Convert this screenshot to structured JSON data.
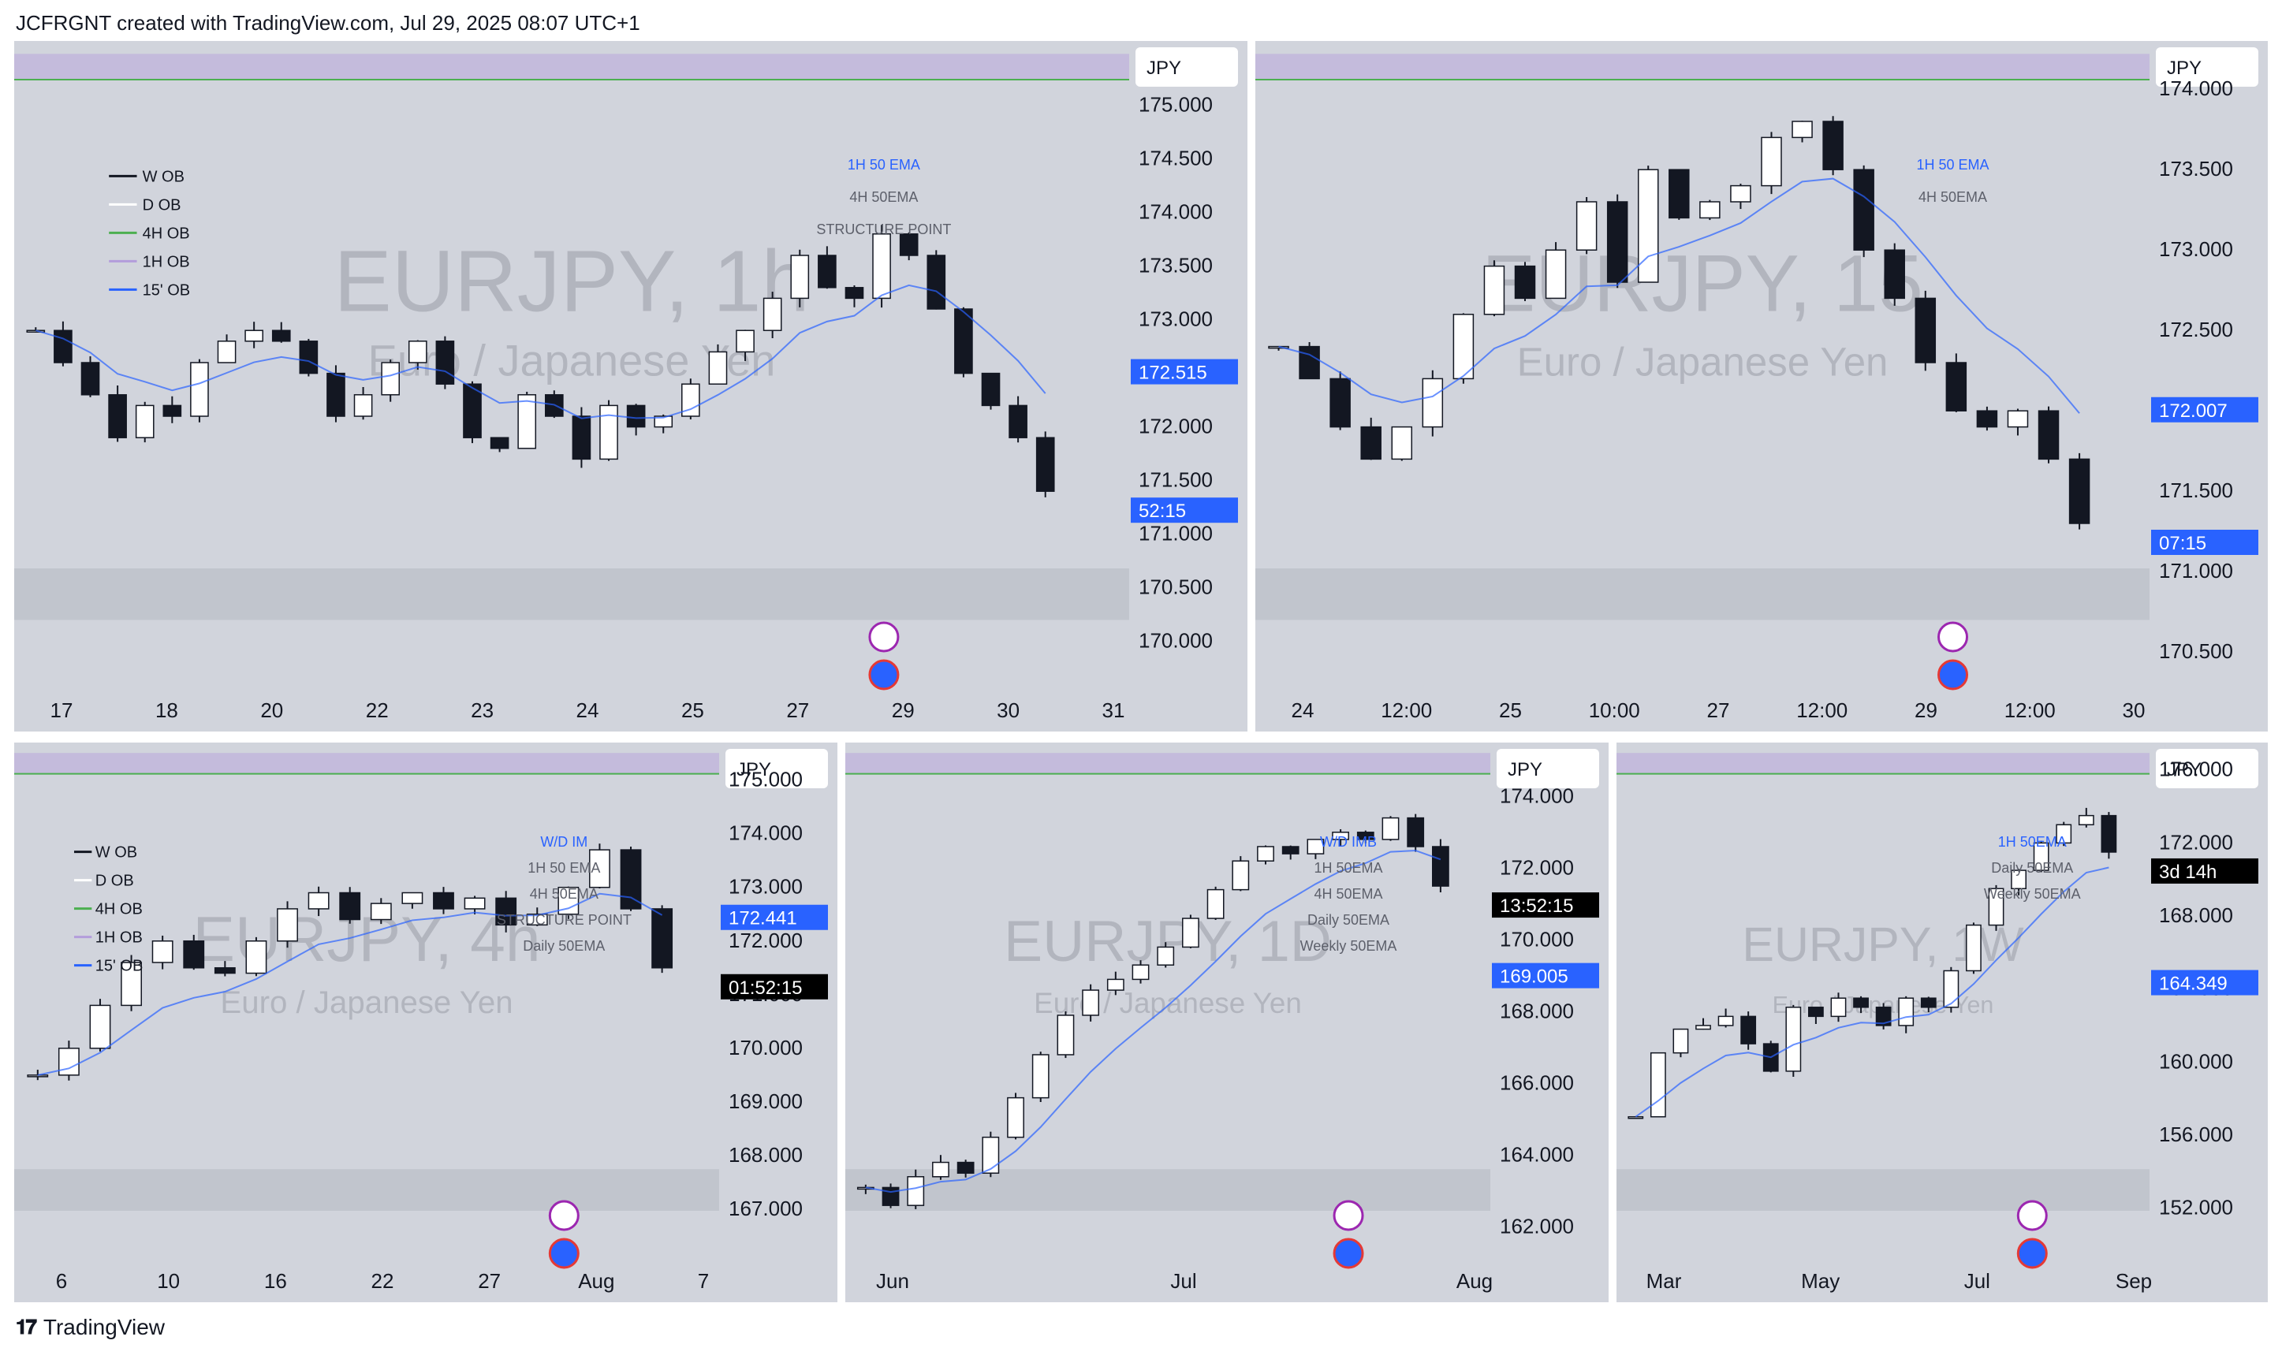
{
  "header": {
    "title": "JCFRGNT created with TradingView.com, Jul 29, 2025 08:07 UTC+1"
  },
  "footer": {
    "brand": "TradingView",
    "logo": "tradingview-logo-icon"
  },
  "colors": {
    "bg": "#d1d4dc",
    "up": "#ffffff",
    "down": "#131722",
    "ema1h": "#2962ff",
    "ema4h": "#4caf50",
    "purple": "#b39ddb",
    "badge_blue": "#2962ff",
    "countdown_blue": "#2962ff"
  },
  "chart_data": [
    {
      "type": "candlestick",
      "timeframe": "1h",
      "symbol": "EURJPY",
      "watermark": "EURJPY, 1h",
      "subtitle": "Euro / Japanese Yen",
      "currency": "JPY",
      "x_ticks": [
        "17",
        "18",
        "20",
        "22",
        "23",
        "24",
        "25",
        "27",
        "29",
        "30",
        "31"
      ],
      "y_ticks": [
        "175.000",
        "174.500",
        "174.000",
        "173.500",
        "173.000",
        "172.500",
        "172.000",
        "171.500",
        "171.000",
        "170.500",
        "170.000"
      ],
      "ylim": [
        169.6,
        175.6
      ],
      "price_label": "172.515",
      "countdown": "52:15",
      "legend": [
        "W OB",
        "D OB",
        "4H OB",
        "1H OB",
        "15' OB"
      ],
      "annotations": [
        "1H 50 EMA",
        "4H 50EMA",
        "STRUCTURE POINT"
      ],
      "close": [
        172.9,
        172.6,
        172.3,
        171.9,
        172.2,
        172.1,
        172.6,
        172.8,
        172.9,
        172.8,
        172.5,
        172.1,
        172.3,
        172.6,
        172.8,
        172.4,
        171.9,
        171.8,
        172.3,
        172.1,
        171.7,
        172.2,
        172.0,
        172.1,
        172.4,
        172.7,
        172.9,
        173.2,
        173.6,
        173.3,
        173.2,
        173.8,
        173.6,
        173.1,
        172.5,
        172.2,
        171.9,
        171.4
      ],
      "levels": [
        {
          "name": "horizontal-line",
          "price": 173.0
        },
        {
          "name": "structure-point",
          "price": 171.4
        },
        {
          "name": "1H 50 EMA",
          "price": 172.515
        },
        {
          "name": "4H 50EMA",
          "price": 172.43
        }
      ]
    },
    {
      "type": "candlestick",
      "timeframe": "15",
      "symbol": "EURJPY",
      "watermark": "EURJPY, 15",
      "subtitle": "Euro / Japanese Yen",
      "currency": "JPY",
      "x_ticks": [
        "24",
        "12:00",
        "25",
        "10:00",
        "27",
        "12:00",
        "29",
        "12:00",
        "30"
      ],
      "y_ticks": [
        "174.000",
        "173.500",
        "173.000",
        "172.500",
        "172.000",
        "171.500",
        "171.000",
        "170.500"
      ],
      "ylim": [
        170.3,
        174.3
      ],
      "price_label": "172.007",
      "countdown": "07:15",
      "annotations": [
        "1H 50 EMA",
        "4H 50EMA"
      ],
      "close": [
        172.4,
        172.2,
        171.9,
        171.7,
        171.9,
        172.2,
        172.6,
        172.9,
        172.7,
        173.0,
        173.3,
        172.8,
        173.5,
        173.2,
        173.3,
        173.4,
        173.7,
        173.8,
        173.5,
        173.0,
        172.7,
        172.3,
        172.0,
        171.9,
        172.0,
        171.7,
        171.3
      ]
    },
    {
      "type": "candlestick",
      "timeframe": "4h",
      "symbol": "EURJPY",
      "watermark": "EURJPY, 4h",
      "subtitle": "Euro / Japanese Yen",
      "currency": "JPY",
      "x_ticks": [
        "6",
        "10",
        "16",
        "22",
        "27",
        "Aug",
        "7"
      ],
      "y_ticks": [
        "175.000",
        "174.000",
        "173.000",
        "172.000",
        "171.000",
        "170.000",
        "169.000",
        "168.000",
        "167.000"
      ],
      "ylim": [
        166.0,
        175.7
      ],
      "price_label": "172.441",
      "countdown": "01:52:15",
      "legend": [
        "W OB",
        "D OB",
        "4H OB",
        "1H OB",
        "15' OB"
      ],
      "annotations": [
        "W/D IM",
        "1H 50 EMA",
        "4H 50EMA",
        "STRUCTURE POINT",
        "Daily 50EMA"
      ],
      "close": [
        169.5,
        170.0,
        170.8,
        171.6,
        172.0,
        171.5,
        171.4,
        172.0,
        172.6,
        172.9,
        172.4,
        172.7,
        172.9,
        172.6,
        172.8,
        172.3,
        172.5,
        173.0,
        173.7,
        172.6,
        171.5
      ]
    },
    {
      "type": "candlestick",
      "timeframe": "1D",
      "symbol": "EURJPY",
      "watermark": "EURJPY, 1D",
      "subtitle": "Euro / Japanese Yen",
      "currency": "JPY",
      "x_ticks": [
        "Jun",
        "Jul",
        "Aug"
      ],
      "y_ticks": [
        "174.000",
        "172.000",
        "170.000",
        "168.000",
        "166.000",
        "164.000",
        "162.000"
      ],
      "ylim": [
        161.0,
        175.5
      ],
      "price_label": "169.005",
      "countdown": "13:52:15",
      "annotations": [
        "W/D IMB",
        "1H 50EMA",
        "4H 50EMA",
        "Daily 50EMA",
        "Weekly 50EMA"
      ],
      "close": [
        163.1,
        162.6,
        163.4,
        163.8,
        163.5,
        164.5,
        165.6,
        166.8,
        167.9,
        168.6,
        168.9,
        169.3,
        169.8,
        170.6,
        171.4,
        172.2,
        172.6,
        172.4,
        172.8,
        173.0,
        172.8,
        173.4,
        172.6,
        171.5
      ]
    },
    {
      "type": "candlestick",
      "timeframe": "1W",
      "symbol": "EURJPY",
      "watermark": "EURJPY, 1W",
      "subtitle": "Euro / Japanese Yen",
      "currency": "JPY",
      "x_ticks": [
        "Mar",
        "May",
        "Jul",
        "Sep"
      ],
      "y_ticks": [
        "176.000",
        "172.000",
        "168.000",
        "164.000",
        "160.000",
        "156.000",
        "152.000"
      ],
      "ylim": [
        149.0,
        177.5
      ],
      "price_label": "164.349",
      "countdown": "3d 14h",
      "annotations": [
        "1H 50EMA",
        "Daily 50EMA",
        "Weekly 50EMA"
      ],
      "close": [
        157.0,
        160.5,
        161.8,
        162.0,
        162.5,
        161.0,
        159.5,
        163.0,
        162.5,
        163.5,
        163.0,
        162.0,
        163.5,
        163.0,
        165.0,
        167.5,
        169.5,
        170.5,
        172.0,
        173.0,
        173.5,
        171.5
      ]
    }
  ]
}
